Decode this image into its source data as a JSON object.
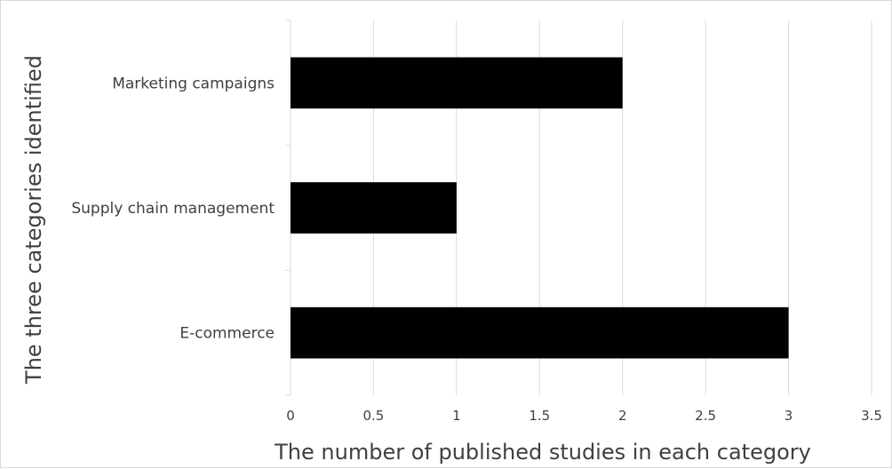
{
  "chart_data": {
    "type": "bar",
    "orientation": "horizontal",
    "categories": [
      "Marketing campaigns",
      "Supply chain management",
      "E-commerce"
    ],
    "values": [
      2,
      1,
      3
    ],
    "xlabel": "The number of published studies in each category",
    "ylabel": "The three categories identified",
    "xlim": [
      0,
      3.5
    ],
    "xticks": [
      "0",
      "0.5",
      "1",
      "1.5",
      "2",
      "2.5",
      "3",
      "3.5"
    ],
    "grid": "vertical",
    "legend": "none",
    "bar_color": "#000000",
    "grid_color": "#d9d9d9"
  }
}
